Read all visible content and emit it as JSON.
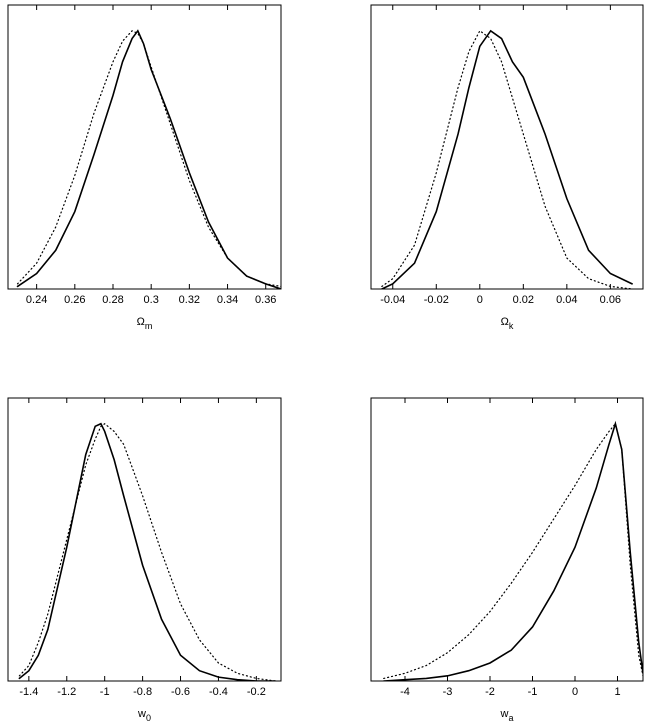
{
  "chart_data": [
    {
      "type": "line",
      "x": [
        0.23,
        0.24,
        0.25,
        0.26,
        0.27,
        0.28,
        0.285,
        0.29,
        0.293,
        0.296,
        0.3,
        0.31,
        0.32,
        0.33,
        0.34,
        0.35,
        0.36,
        0.368
      ],
      "series": [
        {
          "color": "#000000",
          "style": "solid",
          "values": [
            0.01,
            0.06,
            0.15,
            0.3,
            0.52,
            0.75,
            0.88,
            0.97,
            1.0,
            0.95,
            0.85,
            0.66,
            0.45,
            0.26,
            0.12,
            0.05,
            0.02,
            0.0
          ]
        },
        {
          "color": "#000000",
          "style": "dotted",
          "values": [
            0.02,
            0.1,
            0.24,
            0.44,
            0.68,
            0.88,
            0.96,
            1.0,
            0.99,
            0.95,
            0.86,
            0.64,
            0.42,
            0.24,
            0.12,
            0.05,
            0.02,
            0.01
          ]
        }
      ],
      "xlim": [
        0.225,
        0.368
      ],
      "ylim": [
        0,
        1.1
      ],
      "xticks": [
        0.24,
        0.26,
        0.28,
        0.3,
        0.32,
        0.34,
        0.36
      ],
      "xlabel": {
        "symbol": "Ω",
        "subscript": "m"
      }
    },
    {
      "type": "line",
      "x": [
        -0.045,
        -0.04,
        -0.03,
        -0.02,
        -0.01,
        -0.005,
        0,
        0.005,
        0.01,
        0.015,
        0.02,
        0.03,
        0.04,
        0.05,
        0.06,
        0.07
      ],
      "series": [
        {
          "color": "#000000",
          "style": "solid",
          "values": [
            0.0,
            0.02,
            0.1,
            0.3,
            0.6,
            0.78,
            0.94,
            1.0,
            0.97,
            0.88,
            0.82,
            0.6,
            0.35,
            0.15,
            0.06,
            0.02
          ]
        },
        {
          "color": "#000000",
          "style": "dotted",
          "values": [
            0.01,
            0.04,
            0.17,
            0.45,
            0.78,
            0.92,
            1.0,
            0.97,
            0.88,
            0.74,
            0.6,
            0.32,
            0.12,
            0.04,
            0.01,
            0.0
          ]
        }
      ],
      "xlim": [
        -0.05,
        0.075
      ],
      "ylim": [
        0,
        1.1
      ],
      "xticks": [
        -0.04,
        -0.02,
        0,
        0.02,
        0.04,
        0.06
      ],
      "xlabel": {
        "symbol": "Ω",
        "subscript": "k"
      }
    },
    {
      "type": "line",
      "x": [
        -1.45,
        -1.4,
        -1.35,
        -1.3,
        -1.2,
        -1.1,
        -1.05,
        -1.02,
        -1.0,
        -0.95,
        -0.9,
        -0.8,
        -0.7,
        -0.6,
        -0.5,
        -0.4,
        -0.3,
        -0.2,
        -0.1
      ],
      "series": [
        {
          "color": "#000000",
          "style": "solid",
          "values": [
            0.01,
            0.04,
            0.1,
            0.2,
            0.52,
            0.88,
            0.99,
            1.0,
            0.97,
            0.86,
            0.72,
            0.45,
            0.24,
            0.1,
            0.04,
            0.015,
            0.005,
            0.0,
            0.0
          ]
        },
        {
          "color": "#000000",
          "style": "dotted",
          "values": [
            0.02,
            0.06,
            0.15,
            0.26,
            0.55,
            0.84,
            0.94,
            0.99,
            1.0,
            0.97,
            0.92,
            0.72,
            0.5,
            0.3,
            0.16,
            0.07,
            0.03,
            0.01,
            0.0
          ]
        }
      ],
      "xlim": [
        -1.51,
        -0.07
      ],
      "ylim": [
        0,
        1.1
      ],
      "xticks": [
        -1.4,
        -1.2,
        -1,
        -0.8,
        -0.6,
        -0.4,
        -0.2
      ],
      "xlabel": {
        "symbol": "w",
        "subscript": "0"
      }
    },
    {
      "type": "line",
      "x": [
        -4.5,
        -4,
        -3.5,
        -3,
        -2.5,
        -2,
        -1.5,
        -1,
        -0.5,
        0,
        0.5,
        0.8,
        0.95,
        1.1,
        1.3,
        1.5,
        1.6
      ],
      "series": [
        {
          "color": "#000000",
          "style": "solid",
          "values": [
            0.0,
            0.005,
            0.01,
            0.02,
            0.04,
            0.07,
            0.12,
            0.21,
            0.35,
            0.52,
            0.75,
            0.92,
            1.0,
            0.9,
            0.5,
            0.15,
            0.03
          ]
        },
        {
          "color": "#000000",
          "style": "dotted",
          "values": [
            0.01,
            0.03,
            0.06,
            0.11,
            0.18,
            0.27,
            0.38,
            0.5,
            0.63,
            0.76,
            0.9,
            0.97,
            1.0,
            0.9,
            0.45,
            0.1,
            0.02
          ]
        }
      ],
      "xlim": [
        -4.8,
        1.6
      ],
      "ylim": [
        0,
        1.1
      ],
      "xticks": [
        -4,
        -3,
        -2,
        -1,
        0,
        1
      ],
      "xlabel": {
        "symbol": "w",
        "subscript": "a"
      }
    }
  ]
}
